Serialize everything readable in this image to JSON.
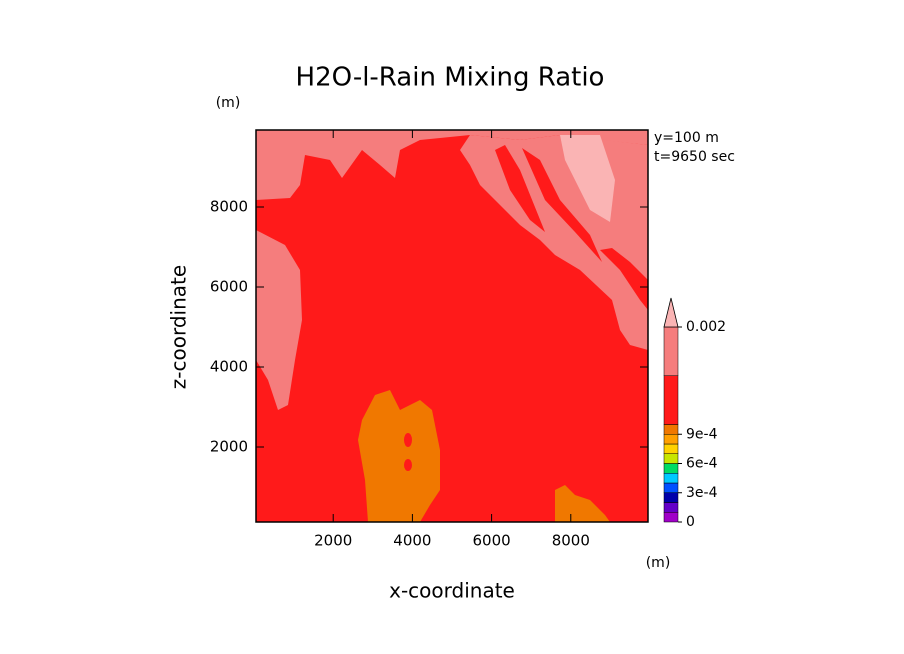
{
  "chart_data": {
    "type": "contour",
    "title": "H2O-l-Rain Mixing Ratio",
    "x_label": "x-coordinate",
    "y_label": "z-coordinate",
    "x_unit": "(m)",
    "y_unit": "(m)",
    "annotations": [
      "y=100 m",
      "t=9650 sec"
    ],
    "xlim": [
      50,
      9950
    ],
    "ylim": [
      125,
      9925
    ],
    "xticks": [
      2000,
      4000,
      6000,
      8000
    ],
    "yticks": [
      2000,
      4000,
      6000,
      8000
    ],
    "colorbar": {
      "lim": [
        0,
        0.002
      ],
      "levels": [
        0,
        0.0001,
        0.0002,
        0.0003,
        0.0004,
        0.0005,
        0.0006,
        0.0007,
        0.0008,
        0.0009,
        0.001,
        0.0015,
        0.002
      ],
      "colors": [
        "#a000c8",
        "#6400c8",
        "#0000aa",
        "#0050ff",
        "#00c8ff",
        "#00dc64",
        "#c8e600",
        "#ffd200",
        "#ffa000",
        "#f07800",
        "#ff1a1a",
        "#f57d7d",
        "#fab4b4"
      ],
      "ticks": [
        0,
        {
          "value": 0.0003,
          "label": "3e-4"
        },
        {
          "value": 0.0006,
          "label": "6e-4"
        },
        {
          "value": 0.0009,
          "label": "9e-4"
        },
        0.002
      ]
    }
  }
}
